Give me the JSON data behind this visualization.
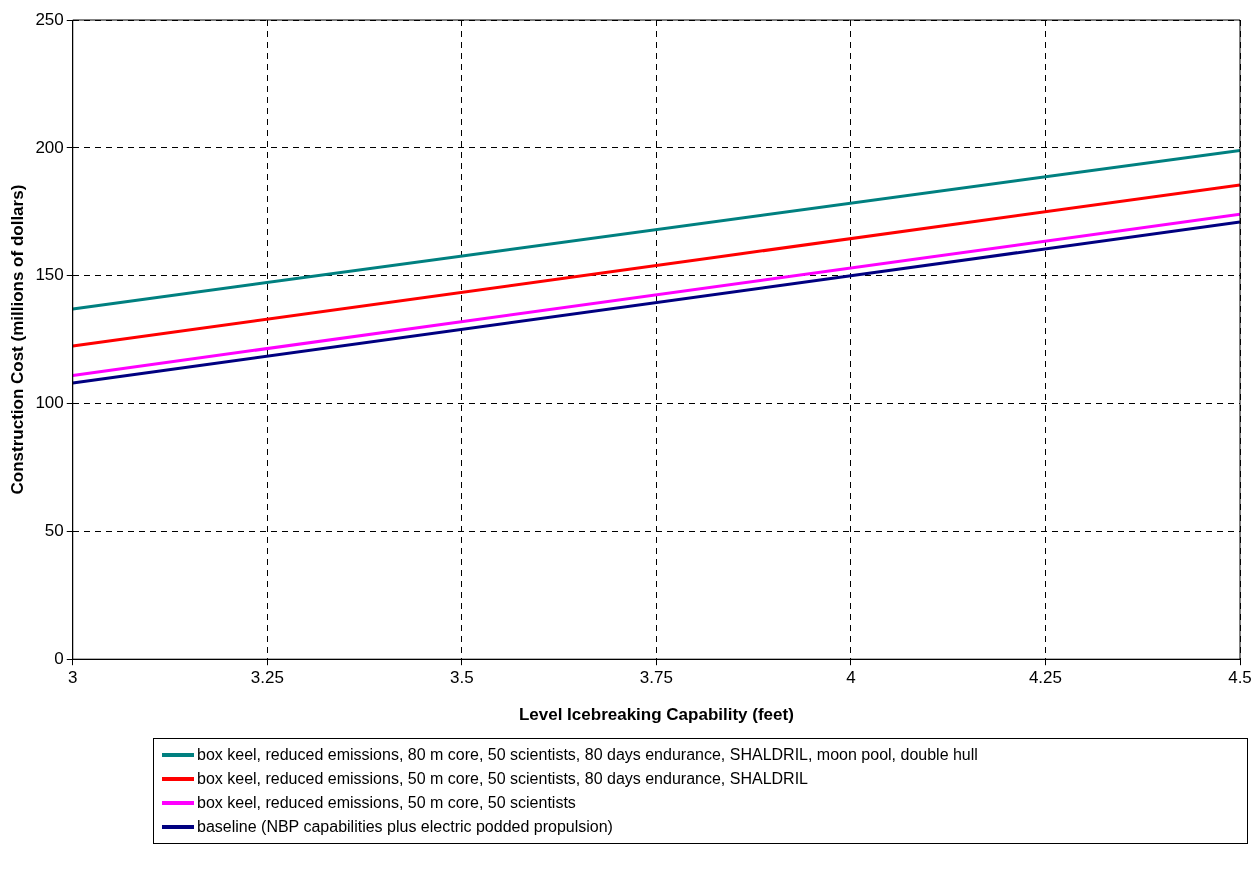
{
  "chart_data": {
    "type": "line",
    "xlabel": "Level Icebreaking Capability (feet)",
    "ylabel": "Construction Cost (millions of dollars)",
    "x": [
      3,
      4.5
    ],
    "series": [
      {
        "name": "box keel, reduced emissions, 80 m core, 50 scientists, 80 days endurance, SHALDRIL, moon pool, double hull",
        "color": "#008080",
        "values": [
          137,
          199
        ]
      },
      {
        "name": "box keel, reduced emissions, 50 m core, 50 scientists, 80 days endurance, SHALDRIL",
        "color": "#ff0000",
        "values": [
          122.5,
          185.5
        ]
      },
      {
        "name": "box keel, reduced emissions, 50 m core, 50 scientists",
        "color": "#ff00ff",
        "values": [
          111,
          174
        ]
      },
      {
        "name": "baseline (NBP capabilities plus electric podded propulsion)",
        "color": "#000080",
        "values": [
          108,
          171
        ]
      }
    ],
    "xlim": [
      3,
      4.5
    ],
    "xticks": [
      3,
      3.25,
      3.5,
      3.75,
      4,
      4.25,
      4.5
    ],
    "ylim": [
      0,
      250
    ],
    "yticks": [
      0,
      50,
      100,
      150,
      200,
      250
    ],
    "grid": true,
    "legend": "bottom",
    "marker": "none",
    "line_style": "solid"
  }
}
